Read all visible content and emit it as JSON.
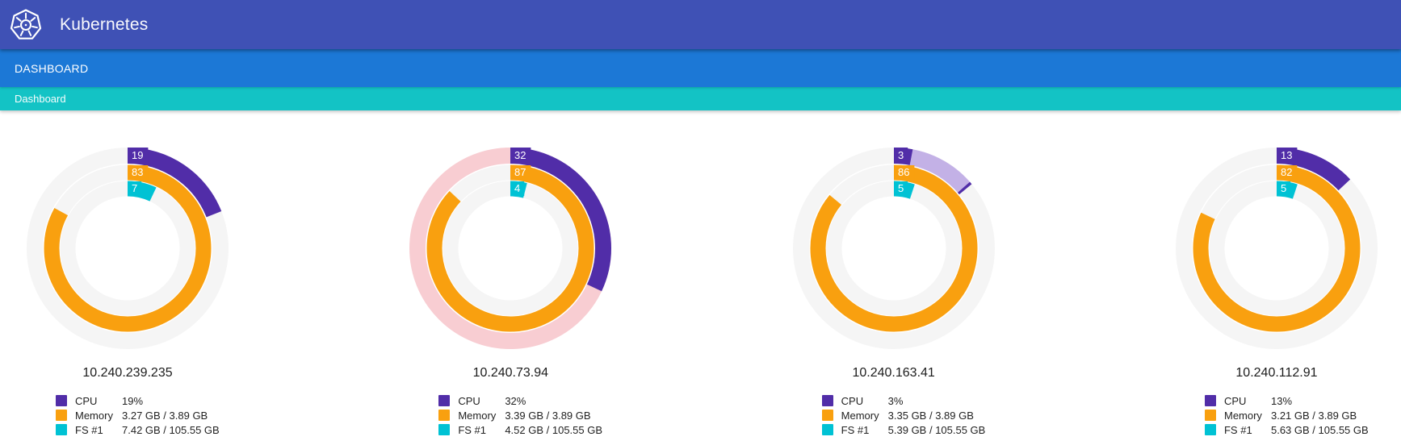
{
  "header": {
    "app_title": "Kubernetes"
  },
  "nav": {
    "tab_label": "DASHBOARD"
  },
  "breadcrumb": {
    "label": "Dashboard"
  },
  "colors": {
    "topbar_bg": "#3f51b5",
    "navbar_bg": "#1c78d6",
    "breadcrumb_bg": "#13c3c5",
    "cpu": "#512da8",
    "cpu_overlay": "#c3b1e6",
    "memory": "#f9a00f",
    "fs": "#00c2d4",
    "ring_track": "#f5f5f5",
    "ring_track_warning": "#f8cdd2"
  },
  "legend_labels": {
    "cpu": "CPU",
    "memory": "Memory",
    "fs": "FS #1"
  },
  "chart_data": {
    "type": "donut",
    "layout": "4 node gauge cards; concentric rings outer-to-inner: CPU, Memory, FS #1; arcs start at 12 o'clock, clockwise; percent label printed at arc start",
    "nodes": [
      {
        "ip": "10.240.239.235",
        "cpu_pct": 19,
        "memory_pct": 83,
        "fs_pct": 7,
        "cpu_display": "19%",
        "memory_display": "3.27 GB / 3.89 GB",
        "fs_display": "7.42 GB / 105.55 GB",
        "warning_track": false
      },
      {
        "ip": "10.240.73.94",
        "cpu_pct": 32,
        "memory_pct": 87,
        "fs_pct": 4,
        "cpu_display": "32%",
        "memory_display": "3.39 GB / 3.89 GB",
        "fs_display": "4.52 GB / 105.55 GB",
        "warning_track": true
      },
      {
        "ip": "10.240.163.41",
        "cpu_pct": 3,
        "memory_pct": 86,
        "fs_pct": 5,
        "cpu_display": "3%",
        "memory_display": "3.35 GB / 3.89 GB",
        "fs_display": "5.39 GB / 105.55 GB",
        "warning_track": false,
        "cpu_overlay": {
          "from": 3,
          "to": 14
        }
      },
      {
        "ip": "10.240.112.91",
        "cpu_pct": 13,
        "memory_pct": 82,
        "fs_pct": 5,
        "cpu_display": "13%",
        "memory_display": "3.21 GB / 3.89 GB",
        "fs_display": "5.63 GB / 105.55 GB",
        "warning_track": false
      }
    ]
  }
}
